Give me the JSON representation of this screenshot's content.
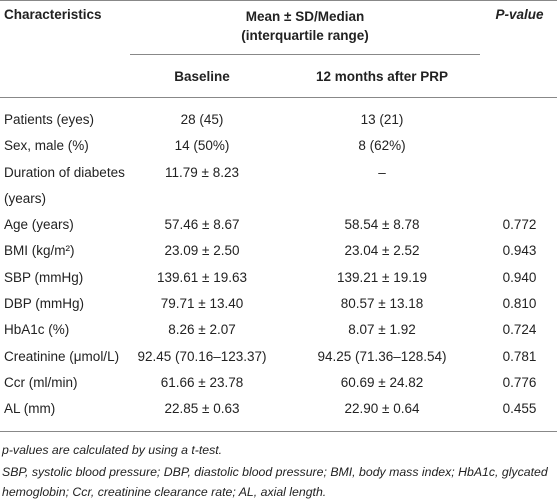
{
  "table": {
    "header": {
      "characteristics": "Characteristics",
      "mean": [
        "Mean ± SD/Median",
        "(interquartile range)"
      ],
      "p_value": "P-value",
      "baseline": "Baseline",
      "after": "12 months after PRP"
    },
    "rows": [
      [
        [
          "Patients (eyes)"
        ],
        "28 (45)",
        "13 (21)"
      ],
      [
        [
          "Sex, male (%)"
        ],
        "14 (50%)",
        "8 (62%)"
      ],
      [
        [
          "Duration of diabetes",
          "(years)"
        ],
        "11.79 ± 8.23",
        "–"
      ],
      [
        [
          "Age (years)"
        ],
        "57.46 ± 8.67",
        "58.54 ± 8.78",
        "0.772"
      ],
      [
        [
          "BMI (kg/m²)"
        ],
        "23.09 ± 2.50",
        "23.04 ± 2.52",
        "0.943"
      ],
      [
        [
          "SBP (mmHg)"
        ],
        "139.61 ± 19.63",
        "139.21 ± 19.19",
        "0.940"
      ],
      [
        [
          "DBP (mmHg)"
        ],
        "79.71 ± 13.40",
        "80.57 ± 13.18",
        "0.810"
      ],
      [
        [
          "HbA1c (%)"
        ],
        "8.26 ± 2.07",
        "8.07 ± 1.92",
        "0.724"
      ],
      [
        [
          "Creatinine (μmol/L)"
        ],
        "92.45 (70.16–123.37)",
        "94.25 (71.36–128.54)",
        "0.781"
      ],
      [
        [
          "Ccr (ml/min)"
        ],
        "61.66 ± 23.78",
        "60.69 ± 24.82",
        "0.776"
      ],
      [
        [
          "AL (mm)"
        ],
        "22.85 ± 0.63",
        "22.90 ± 0.64",
        "0.455"
      ]
    ],
    "footnotes": [
      "p-values are calculated by using a t-test.",
      "SBP, systolic blood pressure; DBP, diastolic blood pressure; BMI, body mass index; HbA1c, glycated hemoglobin; Ccr, creatinine clearance rate; AL, axial length."
    ]
  }
}
